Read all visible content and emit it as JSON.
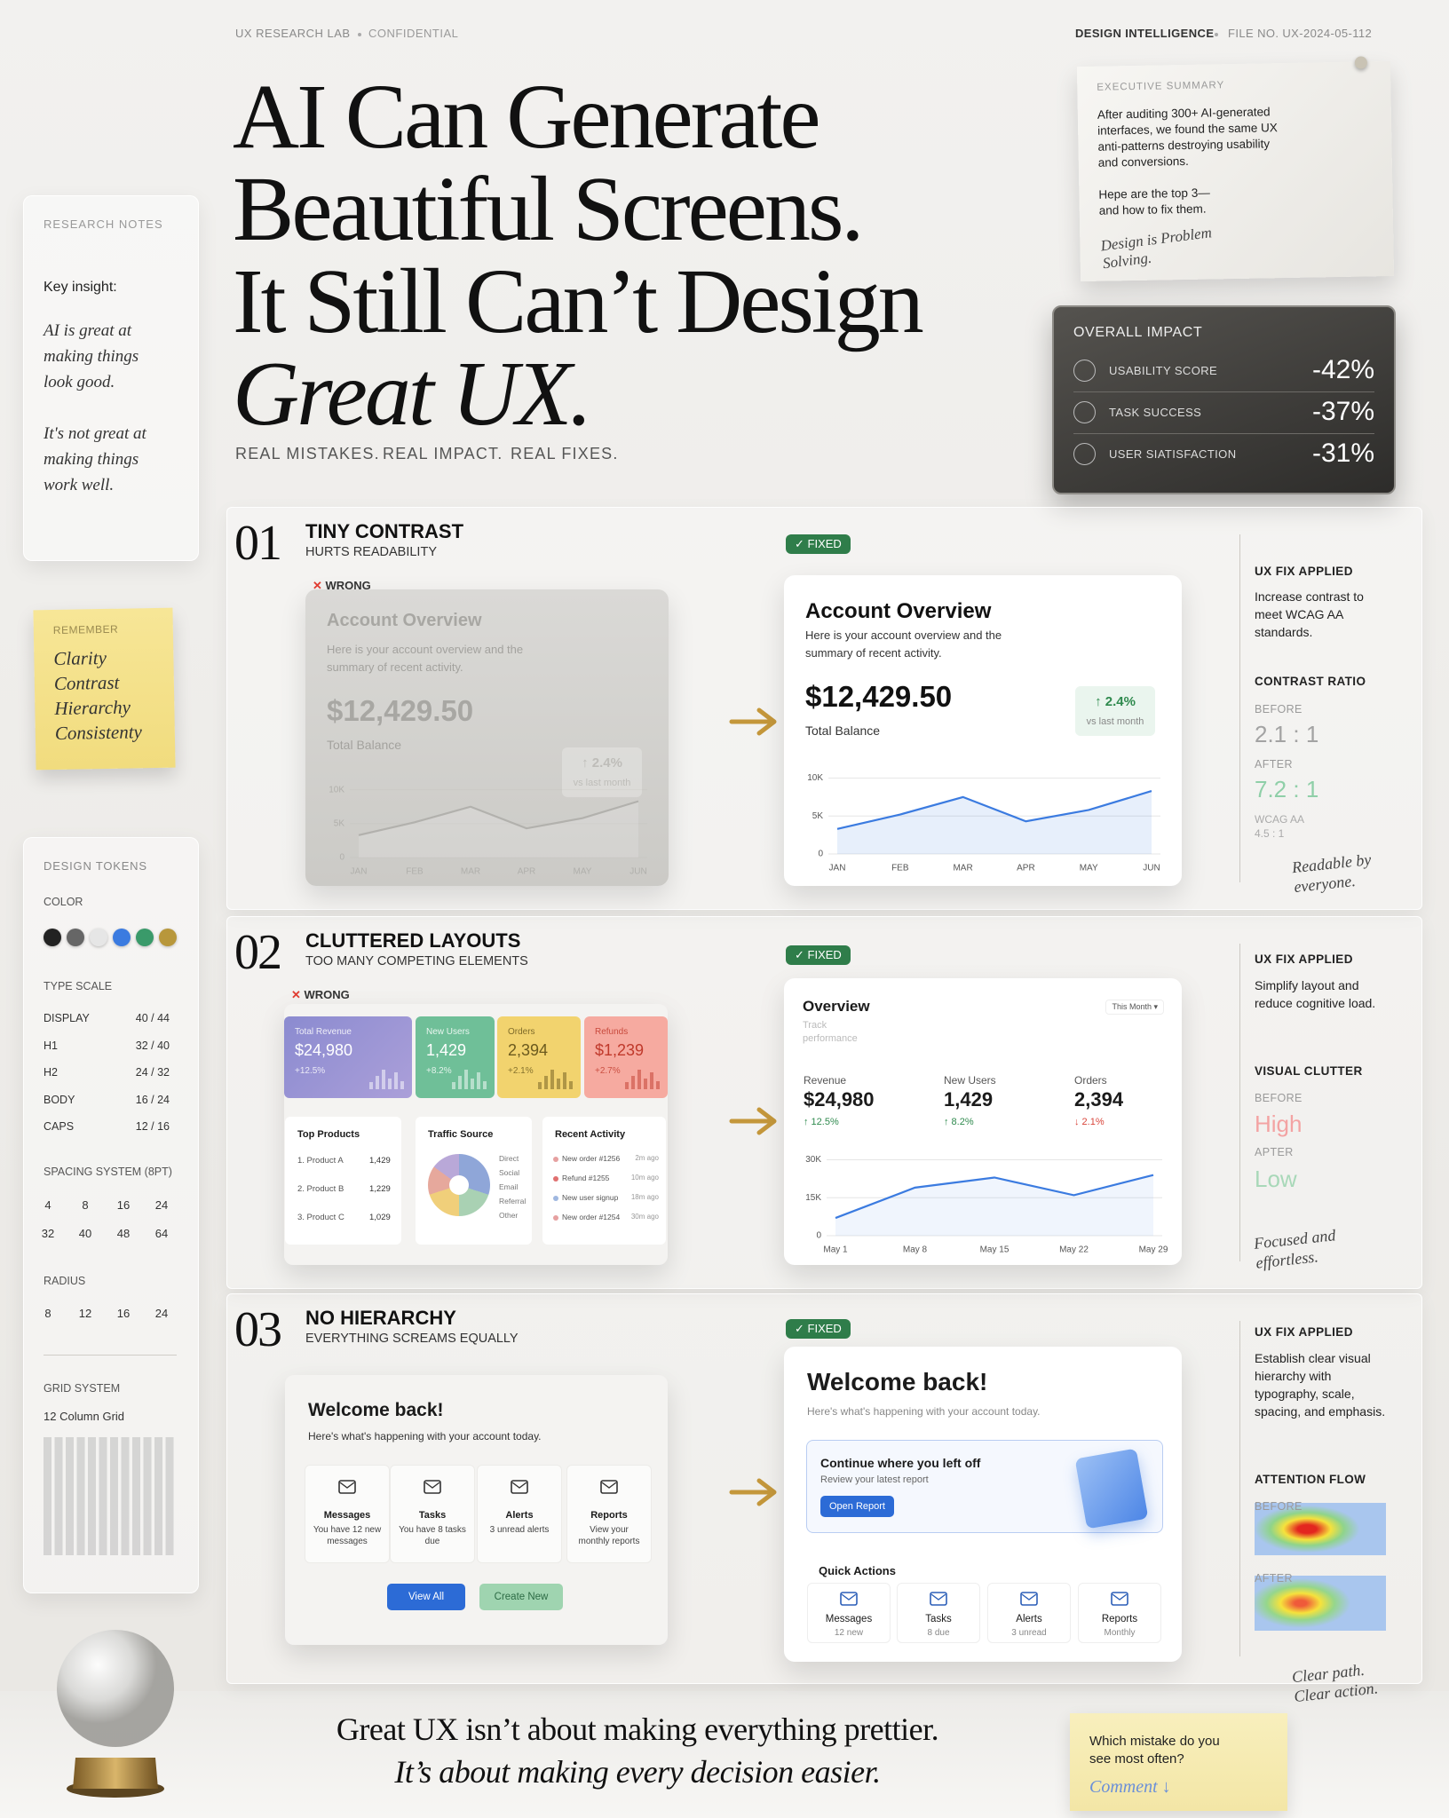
{
  "header": {
    "lab": "UX RESEARCH LAB",
    "confidential": "CONFIDENTIAL",
    "brand": "DESIGN INTELLIGENCE",
    "file": "FILE NO. UX-2024-05-112",
    "title_lines": [
      "AI Can Generate",
      "Beautiful Screens.",
      "It Still Can’t Design",
      "Great UX."
    ],
    "tagline": [
      "REAL MISTAKES.",
      "REAL IMPACT.",
      "REAL FIXES."
    ]
  },
  "summary": {
    "label": "EXECUTIVE SUMMARY",
    "text1": "After auditing 300+ AI-generated interfaces, we found the same UX anti-patterns destroying usability and conversions.",
    "text2": "Hepe are the top 3— and how to fix them.",
    "signature": "Design is Problem Solving."
  },
  "impact": {
    "title": "OVERALL IMPACT",
    "rows": [
      {
        "label": "USABILITY SCORE",
        "value": "-42%"
      },
      {
        "label": "TASK SUCCESS",
        "value": "-37%"
      },
      {
        "label": "USER SIATISFACTION",
        "value": "-31%"
      }
    ]
  },
  "notes": {
    "label": "RESEARCH NOTES",
    "key": "Key insight:",
    "p1": "AI is great at making things look good.",
    "p2": "It's not great at making things work well."
  },
  "sticky": {
    "label": "REMEMBER",
    "items": [
      "Clarity",
      "Contrast",
      "Hierarchy",
      "Consistenty"
    ]
  },
  "tokens": {
    "label": "DESIGN TOKENS",
    "color": "COLOR",
    "type_label": "TYPE SCALE",
    "type": [
      [
        "DISPLAY",
        "40 / 44"
      ],
      [
        "H1",
        "32 / 40"
      ],
      [
        "H2",
        "24 / 32"
      ],
      [
        "BODY",
        "16 / 24"
      ],
      [
        "CAPS",
        "12 / 16"
      ]
    ],
    "spacing_label": "SPACING SYSTEM (8PT)",
    "spacing": [
      "4",
      "8",
      "16",
      "24",
      "32",
      "40",
      "48",
      "64"
    ],
    "radius_label": "RADIUS",
    "radius": [
      "8",
      "12",
      "16",
      "24"
    ],
    "grid_label": "GRID SYSTEM",
    "grid": "12 Column Grid"
  },
  "sections": [
    {
      "num": "01",
      "title": "TINY CONTRAST",
      "subtitle": "HURTS READABILITY",
      "wrong_tag": "WRONG",
      "fixed_tag": "FIXED",
      "card": {
        "title": "Account Overview",
        "desc": "Here is your account overview and the summary of recent activity.",
        "amount": "$12,429.50",
        "amount_label": "Total Balance",
        "change": "↑ 2.4%",
        "change_label": "vs last month"
      },
      "chart": {
        "type": "line",
        "categories": [
          "JAN",
          "FEB",
          "MAR",
          "APR",
          "MAY",
          "JUN"
        ],
        "values": [
          3300,
          5200,
          7500,
          4300,
          5800,
          8300
        ],
        "ylim": [
          0,
          11000
        ],
        "yticks": [
          0,
          {
            "value": 5000,
            "label": "5K"
          },
          {
            "value": 10000,
            "label": "10K"
          }
        ]
      },
      "panel": {
        "heading": "UX FIX APPLIED",
        "fix": "Increase contrast to meet WCAG AA standards.",
        "metric": "CONTRAST RATIO",
        "before_label": "BEFORE",
        "before": "2.1 : 1",
        "after_label": "AFTER",
        "after": "7.2 : 1",
        "extra": "WCAG AA 4.5 : 1",
        "note": "Readable by everyone."
      }
    },
    {
      "num": "02",
      "title": "CLUTTERED LAYOUTS",
      "subtitle": "TOO MANY COMPETING ELEMENTS",
      "wrong_tag": "WRONG",
      "fixed_tag": "FIXED",
      "wrong": {
        "tiles": [
          {
            "label": "Total Revenue",
            "value": "$24,980",
            "change": "+12.5%"
          },
          {
            "label": "New Users",
            "value": "1,429",
            "change": "+8.2%"
          },
          {
            "label": "Orders",
            "value": "2,394",
            "change": "+2.1%"
          },
          {
            "label": "Refunds",
            "value": "$1,239",
            "change": "+2.7%"
          }
        ],
        "products_title": "Top Products",
        "products": [
          [
            "1. Product A",
            "1,429"
          ],
          [
            "2. Product B",
            "1,229"
          ],
          [
            "3. Product C",
            "1,029"
          ]
        ],
        "traffic_title": "Traffic Source",
        "traffic": [
          "Direct",
          "Social",
          "Email",
          "Referral",
          "Other"
        ],
        "activity_title": "Recent Activity",
        "activity": [
          [
            "New order #1256",
            "2m ago"
          ],
          [
            "Refund #1255",
            "10m ago"
          ],
          [
            "New user signup",
            "18m ago"
          ],
          [
            "New order #1254",
            "30m ago"
          ]
        ]
      },
      "fixed": {
        "title": "Overview",
        "subtitle": "Track performance",
        "period": "This Month ▾",
        "metrics": [
          {
            "label": "Revenue",
            "value": "$24,980",
            "change": "↑ 12.5%"
          },
          {
            "label": "New Users",
            "value": "1,429",
            "change": "↑ 8.2%"
          },
          {
            "label": "Orders",
            "value": "2,394",
            "change": "↓ 2.1%"
          }
        ]
      },
      "chart": {
        "type": "line",
        "categories": [
          "May 1",
          "May 8",
          "May 15",
          "May 22",
          "May 29"
        ],
        "values": [
          7000,
          19000,
          23000,
          16000,
          24000
        ],
        "ylim": [
          0,
          33000
        ],
        "yticks": [
          0,
          {
            "value": 15000,
            "label": "15K"
          },
          {
            "value": 30000,
            "label": "30K"
          }
        ]
      },
      "panel": {
        "heading": "UX FIX APPLIED",
        "fix": "Simplify layout and reduce cognitive load.",
        "metric": "VISUAL CLUTTER",
        "before_label": "BEFORE",
        "before": "High",
        "after_label": "APTER",
        "after": "Low",
        "note": "Focused and effortless."
      }
    },
    {
      "num": "03",
      "title": "NO HIERARCHY",
      "subtitle": "EVERYTHING SCREAMS EQUALLY",
      "fixed_tag": "FIXED",
      "wrong": {
        "title": "Welcome back!",
        "desc": "Here's what's happening with your account today.",
        "tiles": [
          {
            "label": "Messages",
            "text": "You have 12 new messages"
          },
          {
            "label": "Tasks",
            "text": "You have 8 tasks due"
          },
          {
            "label": "Alerts",
            "text": "3 unread alerts"
          },
          {
            "label": "Reports",
            "text": "View your monthly reports"
          }
        ],
        "buttons": [
          "View All",
          "Create New"
        ]
      },
      "fixed": {
        "title": "Welcome back!",
        "desc": "Here's what's happening with your account today.",
        "continue_title": "Continue where you left off",
        "continue_text": "Review your latest report",
        "continue_button": "Open Report",
        "quick_title": "Quick Actions",
        "tiles": [
          {
            "label": "Messages",
            "text": "12 new"
          },
          {
            "label": "Tasks",
            "text": "8 due"
          },
          {
            "label": "Alerts",
            "text": "3 unread"
          },
          {
            "label": "Reports",
            "text": "Monthly"
          }
        ]
      },
      "panel": {
        "heading": "UX FIX APPLIED",
        "fix": "Establish clear visual hierarchy with typography, scale, spacing, and emphasis.",
        "metric": "ATTENTION FLOW",
        "before_label": "BEFORE",
        "after_label": "AFTER",
        "note": "Clear path. Clear action."
      }
    }
  ],
  "footer": {
    "line1": "Great UX isn’t about making everything prettier.",
    "line2": "It’s about making every decision easier.",
    "question": "Which mistake do you see most often?",
    "comment": "Comment ↓"
  }
}
